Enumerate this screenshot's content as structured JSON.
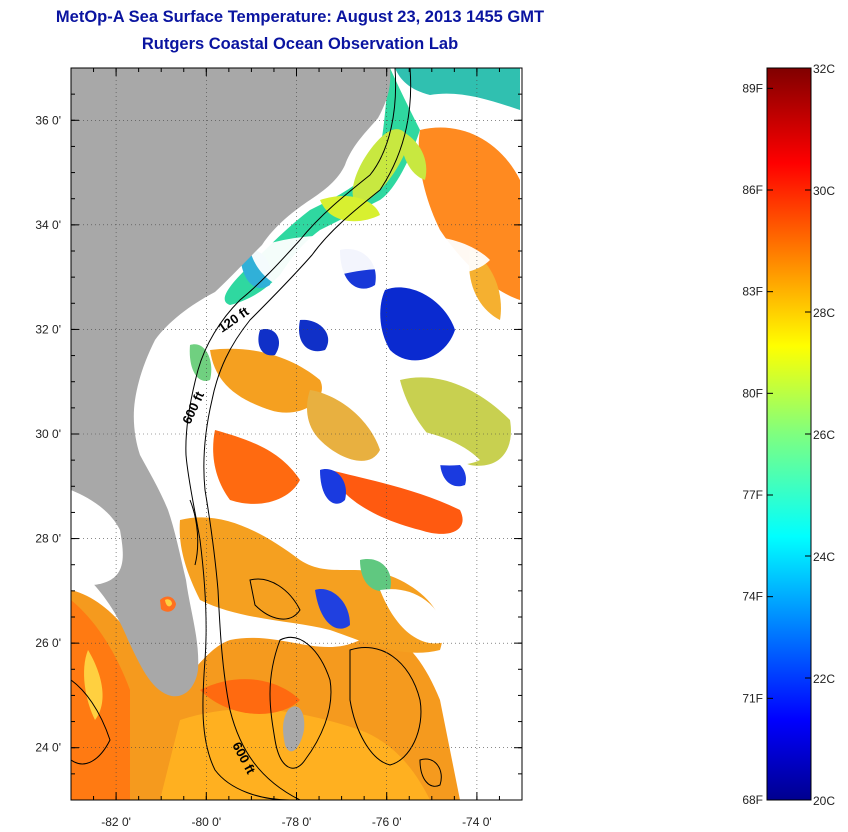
{
  "title": "MetOp-A Sea Surface Temperature:  August 23, 2013 1455 GMT",
  "subtitle": "Rutgers Coastal Ocean Observation Lab",
  "map": {
    "lat_ticks": [
      {
        "value": 24,
        "label": "24 0'"
      },
      {
        "value": 26,
        "label": "26 0'"
      },
      {
        "value": 28,
        "label": "28 0'"
      },
      {
        "value": 30,
        "label": "30 0'"
      },
      {
        "value": 32,
        "label": "32 0'"
      },
      {
        "value": 34,
        "label": "34 0'"
      },
      {
        "value": 36,
        "label": "36 0'"
      }
    ],
    "lon_ticks": [
      {
        "value": -82,
        "label": "-82 0'"
      },
      {
        "value": -80,
        "label": "-80 0'"
      },
      {
        "value": -78,
        "label": "-78 0'"
      },
      {
        "value": -76,
        "label": "-76 0'"
      },
      {
        "value": -74,
        "label": "-74 0'"
      }
    ],
    "lon_range": [
      -83,
      -73
    ],
    "lat_range": [
      23,
      37
    ],
    "contour_labels": [
      "120 ft",
      "600 ft",
      "600 ft"
    ],
    "colors": {
      "land": "#a8a8a8",
      "cloud": "#ffffff"
    }
  },
  "colorbar": {
    "range_c": [
      20,
      32
    ],
    "celsius_labels": [
      "32C",
      "30C",
      "28C",
      "26C",
      "24C",
      "22C",
      "20C"
    ],
    "fahrenheit_labels": [
      "89F",
      "86F",
      "83F",
      "80F",
      "77F",
      "74F",
      "71F",
      "68F"
    ],
    "colormap": "jet"
  }
}
